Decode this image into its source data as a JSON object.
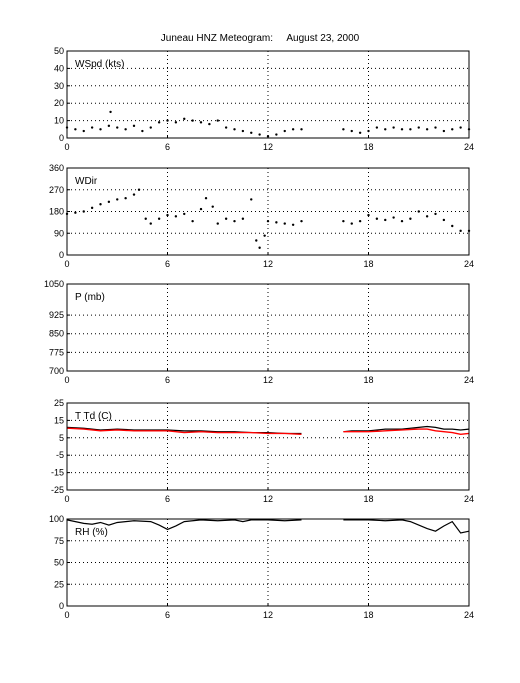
{
  "title": "Juneau HNZ Meteogram:     August 23, 2000",
  "chart_data": [
    {
      "type": "scatter",
      "label": "WSpd (kts)",
      "ylim": [
        0,
        50
      ],
      "yticks": [
        0,
        10,
        20,
        30,
        40,
        50
      ],
      "xlim": [
        0,
        24
      ],
      "xticks": [
        0,
        6,
        12,
        18,
        24
      ],
      "grid": true,
      "series": [
        {
          "color": "#000000",
          "x": [
            0,
            0.5,
            1,
            1.5,
            2,
            2.5,
            2.6,
            3,
            3.5,
            4,
            4.5,
            5,
            5.5,
            6,
            6.5,
            7,
            7.5,
            8,
            8.5,
            9,
            9.5,
            10,
            10.5,
            11,
            11.5,
            12,
            12.5,
            13,
            13.5,
            14,
            16.5,
            17,
            17.5,
            18,
            18.5,
            19,
            19.5,
            20,
            20.5,
            21,
            21.5,
            22,
            22.5,
            23,
            23.5,
            24
          ],
          "y": [
            6,
            5,
            4,
            6,
            5,
            7,
            15,
            6,
            5,
            7,
            4,
            6,
            9,
            10,
            9,
            11,
            10,
            9,
            8,
            10,
            6,
            5,
            4,
            3,
            2,
            1,
            2,
            4,
            5,
            5,
            5,
            4,
            3,
            4,
            6,
            5,
            6,
            5,
            5,
            6,
            5,
            6,
            4,
            5,
            6,
            5
          ]
        }
      ]
    },
    {
      "type": "scatter",
      "label": "WDir",
      "ylim": [
        0,
        360
      ],
      "yticks": [
        0,
        90,
        180,
        270,
        360
      ],
      "xlim": [
        0,
        24
      ],
      "xticks": [
        0,
        6,
        12,
        18,
        24
      ],
      "grid": true,
      "series": [
        {
          "color": "#000000",
          "x": [
            0,
            0.5,
            1,
            1.5,
            2,
            2.5,
            3,
            3.5,
            4,
            4.3,
            4.7,
            5,
            5.5,
            6,
            6.5,
            7,
            7.5,
            8,
            8.3,
            8.7,
            9,
            9.5,
            10,
            10.5,
            11,
            11.3,
            11.5,
            11.8,
            12,
            12.5,
            13,
            13.5,
            14,
            16.5,
            17,
            17.5,
            18,
            18.5,
            19,
            19.5,
            20,
            20.5,
            21,
            21.5,
            22,
            22.5,
            23,
            23.5,
            24
          ],
          "y": [
            170,
            175,
            180,
            195,
            210,
            220,
            230,
            235,
            250,
            270,
            150,
            130,
            150,
            165,
            160,
            170,
            140,
            190,
            235,
            200,
            130,
            150,
            140,
            150,
            230,
            60,
            30,
            80,
            140,
            135,
            130,
            125,
            140,
            140,
            130,
            140,
            165,
            150,
            145,
            155,
            140,
            150,
            180,
            160,
            170,
            145,
            120,
            100,
            100
          ]
        }
      ]
    },
    {
      "type": "line",
      "label": "P (mb)",
      "ylim": [
        700,
        1050
      ],
      "yticks": [
        700,
        775,
        850,
        925,
        1050
      ],
      "xlim": [
        0,
        24
      ],
      "xticks": [
        0,
        6,
        12,
        18,
        24
      ],
      "grid": true,
      "series": []
    },
    {
      "type": "line",
      "label": "T Td (C)",
      "ylim": [
        -25,
        25
      ],
      "yticks": [
        -25,
        -15,
        -5,
        5,
        15,
        25
      ],
      "xlim": [
        0,
        24
      ],
      "xticks": [
        0,
        6,
        12,
        18,
        24
      ],
      "grid": true,
      "series": [
        {
          "color": "#000000",
          "x": [
            0,
            1,
            2,
            3,
            4,
            5,
            6,
            7,
            8,
            9,
            10,
            11,
            12,
            13,
            14,
            16.5,
            17,
            18,
            19,
            20,
            21,
            21.5,
            22,
            22.5,
            23,
            23.5,
            24
          ],
          "y": [
            11,
            10.5,
            9.5,
            10,
            9.5,
            9.5,
            9.5,
            9,
            9,
            8.5,
            8.5,
            8,
            8,
            7.5,
            7.5,
            8.5,
            9,
            9,
            10,
            10,
            11,
            11.5,
            11,
            10,
            10,
            9.5,
            10
          ]
        },
        {
          "color": "#ff0000",
          "x": [
            0,
            1,
            2,
            3,
            4,
            5,
            6,
            7,
            8,
            9,
            10,
            11,
            12,
            13,
            14,
            16.5,
            17,
            18,
            19,
            20,
            21,
            21.5,
            22,
            22.5,
            23,
            23.5,
            24
          ],
          "y": [
            10.5,
            10,
            9,
            9.5,
            9,
            9,
            9,
            8,
            8.5,
            8,
            8,
            8,
            7.5,
            7.5,
            7,
            8.5,
            8.5,
            8.5,
            9,
            9.5,
            10,
            10,
            9,
            8.5,
            8,
            7,
            7.5
          ]
        }
      ]
    },
    {
      "type": "line",
      "label": "RH (%)",
      "ylim": [
        0,
        100
      ],
      "yticks": [
        0,
        25,
        50,
        75,
        100
      ],
      "xlim": [
        0,
        24
      ],
      "xticks": [
        0,
        6,
        12,
        18,
        24
      ],
      "grid": true,
      "series": [
        {
          "color": "#000000",
          "x": [
            0,
            0.5,
            1,
            1.5,
            2,
            2.5,
            3,
            4,
            5,
            5.5,
            6,
            6.5,
            7,
            8,
            9,
            10,
            10.5,
            11,
            12,
            13,
            14,
            16.5,
            17,
            18,
            19,
            20,
            20.5,
            21,
            21.5,
            22,
            22.5,
            23,
            23.5,
            24
          ],
          "y": [
            99,
            97,
            95,
            94,
            96,
            93,
            96,
            98,
            97,
            93,
            88,
            92,
            97,
            99,
            98,
            99,
            97,
            99,
            99,
            98,
            99,
            99,
            99,
            99,
            98,
            99,
            97,
            93,
            89,
            86,
            92,
            97,
            84,
            86
          ]
        }
      ]
    }
  ]
}
